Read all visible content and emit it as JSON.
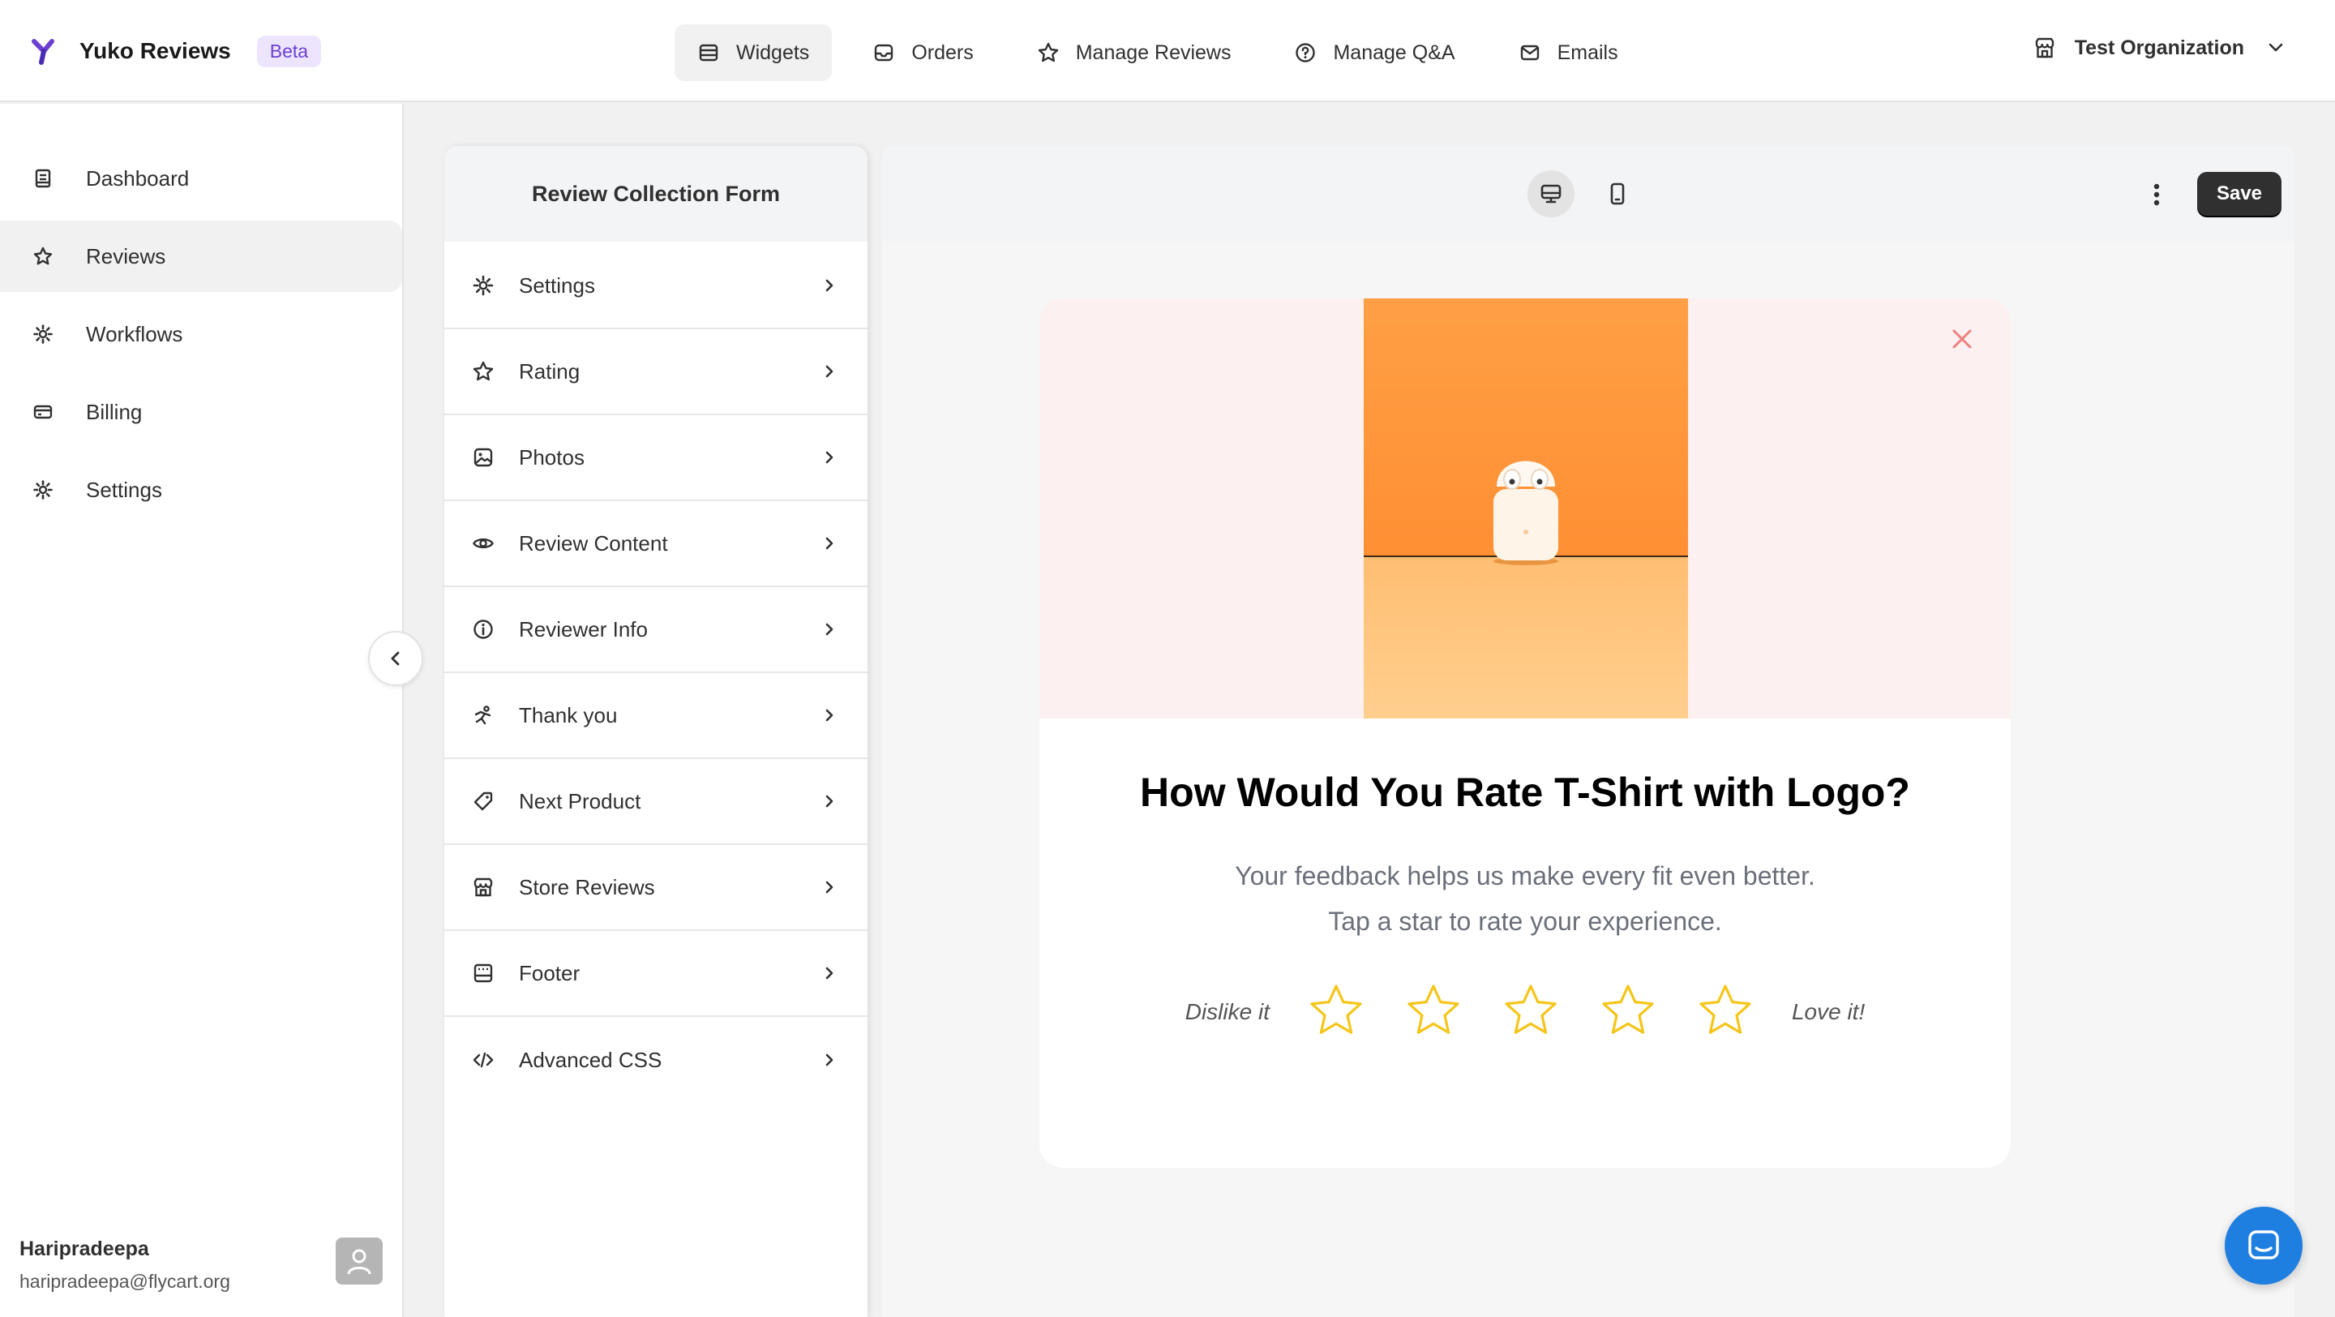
{
  "app": {
    "name": "Yuko Reviews",
    "badge": "Beta",
    "logo_icon": "yuko-logo-icon"
  },
  "topnav": {
    "items": [
      {
        "label": "Widgets",
        "icon": "widgets-icon",
        "active": true
      },
      {
        "label": "Orders",
        "icon": "inbox-icon",
        "active": false
      },
      {
        "label": "Manage Reviews",
        "icon": "star-icon",
        "active": false
      },
      {
        "label": "Manage Q&A",
        "icon": "question-circle-icon",
        "active": false
      },
      {
        "label": "Emails",
        "icon": "email-icon",
        "active": false
      }
    ],
    "organization": "Test Organization"
  },
  "sidebar": {
    "items": [
      {
        "label": "Dashboard",
        "icon": "dashboard-icon",
        "active": false
      },
      {
        "label": "Reviews",
        "icon": "star-icon",
        "active": true
      },
      {
        "label": "Workflows",
        "icon": "gear-icon",
        "active": false
      },
      {
        "label": "Billing",
        "icon": "billing-icon",
        "active": false
      },
      {
        "label": "Settings",
        "icon": "gear-icon",
        "active": false
      }
    ],
    "user": {
      "name": "Haripradeepa",
      "email": "haripradeepa@flycart.org"
    }
  },
  "panel": {
    "title": "Review Collection Form",
    "items": [
      {
        "label": "Settings",
        "icon": "gear-icon"
      },
      {
        "label": "Rating",
        "icon": "star-icon"
      },
      {
        "label": "Photos",
        "icon": "image-icon"
      },
      {
        "label": "Review Content",
        "icon": "eye-icon"
      },
      {
        "label": "Reviewer Info",
        "icon": "info-icon"
      },
      {
        "label": "Thank you",
        "icon": "celebrate-icon"
      },
      {
        "label": "Next Product",
        "icon": "tag-icon"
      },
      {
        "label": "Store Reviews",
        "icon": "store-icon"
      },
      {
        "label": "Footer",
        "icon": "footer-icon"
      },
      {
        "label": "Advanced CSS",
        "icon": "code-icon"
      }
    ]
  },
  "toolbar": {
    "save_label": "Save",
    "view_mode": "desktop"
  },
  "preview": {
    "title": "How Would You Rate T-Shirt with Logo?",
    "subtitle_line1": "Your feedback helps us make every fit even better.",
    "subtitle_line2": "Tap a star to rate your experience.",
    "rating_low_label": "Dislike it",
    "rating_high_label": "Love it!",
    "star_count": 5,
    "star_color": "#f5c518"
  },
  "colors": {
    "accent_purple": "#6b3fd1",
    "chat_blue": "#1f7fe0",
    "close_red": "#f08080"
  }
}
